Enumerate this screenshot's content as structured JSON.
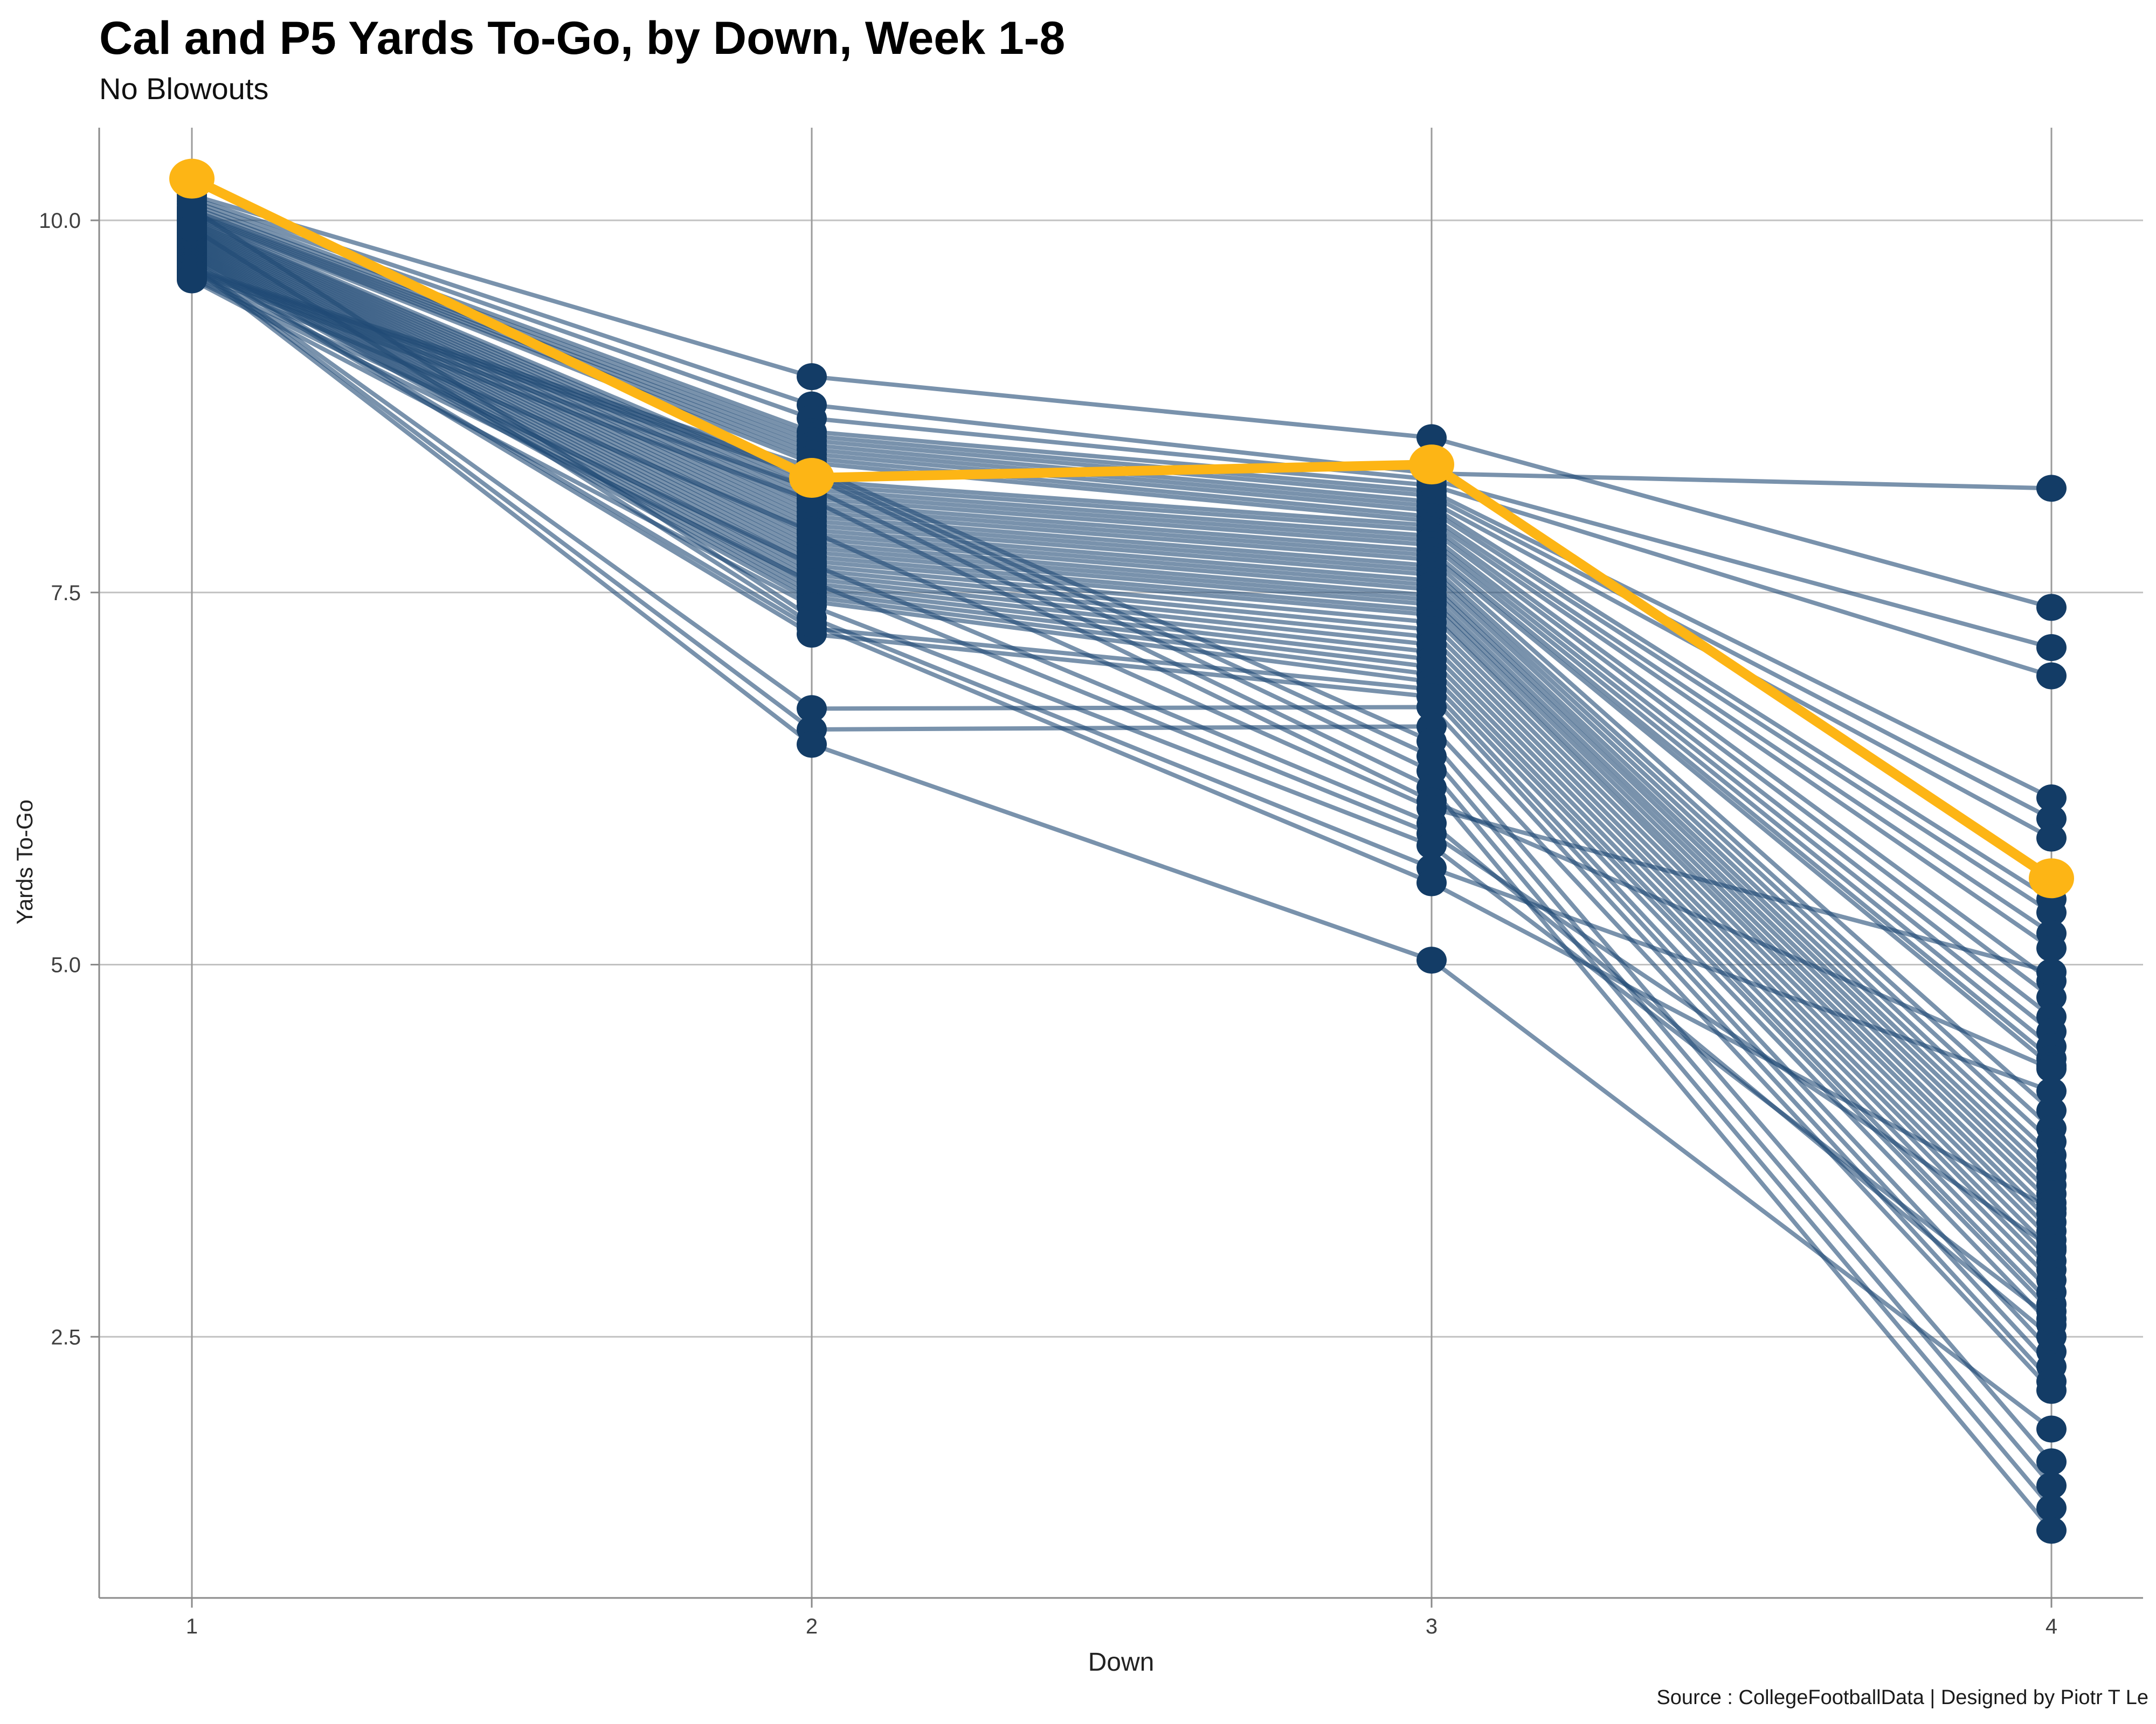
{
  "title": "Cal and P5 Yards To-Go, by Down, Week 1-8",
  "subtitle": "No Blowouts",
  "caption": "Source : CollegeFootballData | Designed by Piotr T Le",
  "colors": {
    "cal_gold": "#FDB515",
    "navy_dot": "#133C66",
    "p5_line": "rgba(31,74,117,0.6)",
    "grid_h": "#C2C2C2",
    "grid_v": "#9B9B9B",
    "axis": "#8A8A8A",
    "tick_text": "#404040",
    "background": "#FFFFFF"
  },
  "chart_data": {
    "type": "line",
    "subtype": "slope-parallel-coordinates",
    "title": "Cal and P5 Yards To-Go, by Down, Week 1-8",
    "subtitle": "No Blowouts",
    "xlabel": "Down",
    "ylabel": "Yards To-Go",
    "x": [
      1,
      2,
      3,
      4
    ],
    "x_tick_labels": [
      "1",
      "2",
      "3",
      "4"
    ],
    "y_tick_labels": [
      "2.5",
      "5.0",
      "7.5",
      "10.0"
    ],
    "y_ticks": [
      2.5,
      5.0,
      7.5,
      10.0
    ],
    "ylim": [
      0.73,
      10.68
    ],
    "grid": true,
    "legend_position": "none",
    "highlight_series": {
      "name": "Cal",
      "color": "#FDB515",
      "values": [
        10.28,
        8.27,
        8.36,
        5.58
      ]
    },
    "p5_series_values": [
      [
        10.17,
        8.95,
        8.54,
        7.4
      ],
      [
        10.15,
        8.76,
        8.3,
        8.2
      ],
      [
        10.13,
        8.67,
        8.26,
        7.13
      ],
      [
        10.11,
        8.58,
        8.22,
        6.94
      ],
      [
        10.09,
        8.55,
        8.18,
        6.12
      ],
      [
        10.07,
        8.52,
        8.15,
        5.98
      ],
      [
        10.06,
        8.49,
        8.11,
        5.85
      ],
      [
        10.05,
        8.46,
        8.08,
        5.44
      ],
      [
        10.04,
        8.43,
        8.05,
        5.35
      ],
      [
        10.03,
        8.4,
        8.01,
        5.21
      ],
      [
        10.02,
        8.37,
        7.98,
        5.11
      ],
      [
        10.01,
        8.25,
        7.95,
        4.89
      ],
      [
        10.0,
        8.22,
        7.92,
        4.78
      ],
      [
        9.99,
        8.19,
        7.88,
        4.65
      ],
      [
        9.98,
        8.16,
        7.85,
        4.55
      ],
      [
        9.97,
        8.13,
        7.82,
        4.45
      ],
      [
        9.96,
        8.1,
        7.78,
        4.37
      ],
      [
        9.95,
        8.07,
        7.75,
        4.32
      ],
      [
        9.94,
        8.04,
        7.72,
        4.02
      ],
      [
        9.93,
        8.01,
        7.68,
        3.9
      ],
      [
        9.92,
        7.98,
        7.65,
        3.81
      ],
      [
        9.91,
        7.95,
        7.62,
        3.72
      ],
      [
        9.9,
        7.92,
        7.58,
        3.65
      ],
      [
        9.89,
        7.89,
        7.55,
        3.58
      ],
      [
        9.88,
        7.86,
        7.52,
        3.52
      ],
      [
        9.87,
        7.83,
        7.48,
        3.46
      ],
      [
        9.86,
        7.8,
        7.45,
        3.4
      ],
      [
        9.85,
        7.77,
        7.42,
        3.33
      ],
      [
        9.84,
        7.74,
        7.38,
        3.27
      ],
      [
        9.83,
        7.71,
        7.35,
        3.21
      ],
      [
        9.82,
        7.68,
        7.3,
        3.15
      ],
      [
        9.81,
        7.65,
        7.25,
        3.08
      ],
      [
        9.8,
        7.62,
        7.2,
        3.01
      ],
      [
        9.79,
        7.59,
        7.15,
        2.95
      ],
      [
        9.78,
        7.56,
        7.1,
        2.88
      ],
      [
        9.77,
        7.53,
        7.05,
        2.8
      ],
      [
        9.76,
        7.5,
        7.0,
        2.72
      ],
      [
        9.75,
        7.47,
        6.95,
        2.67
      ],
      [
        9.74,
        7.44,
        6.9,
        2.58
      ],
      [
        9.73,
        7.26,
        6.85,
        2.4
      ],
      [
        9.72,
        7.22,
        6.8,
        2.3
      ],
      [
        9.71,
        6.72,
        6.73,
        2.2
      ],
      [
        9.7,
        6.58,
        6.6,
        2.14
      ],
      [
        9.69,
        6.48,
        5.03,
        1.88
      ],
      [
        9.68,
        8.34,
        6.5,
        1.66
      ],
      [
        9.67,
        8.31,
        6.4,
        1.5
      ],
      [
        9.66,
        8.28,
        6.3,
        1.35
      ],
      [
        9.65,
        8.2,
        6.19,
        1.2
      ],
      [
        9.64,
        8.12,
        6.1,
        4.3
      ],
      [
        9.63,
        7.91,
        6.05,
        4.95
      ],
      [
        9.62,
        7.69,
        5.95,
        2.5
      ],
      [
        9.61,
        7.57,
        5.88,
        3.1
      ],
      [
        9.6,
        7.41,
        5.8,
        2.62
      ],
      [
        10.08,
        7.33,
        5.65,
        4.15
      ],
      [
        9.95,
        7.29,
        5.55,
        3.36
      ]
    ]
  }
}
